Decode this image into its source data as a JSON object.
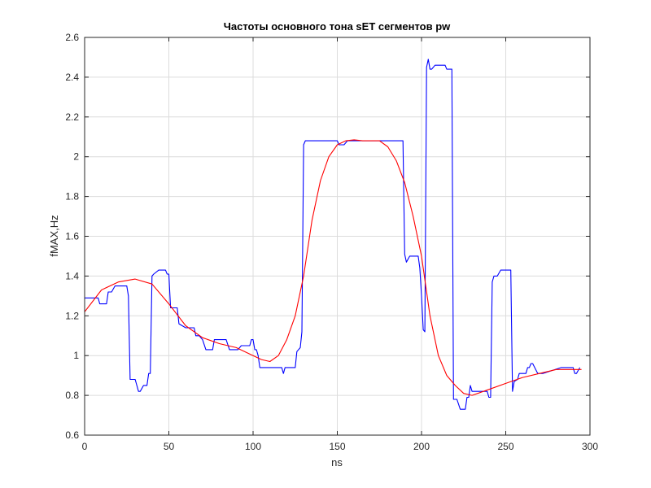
{
  "chart_data": {
    "type": "line",
    "title": "Частоты основного тона sET сегментов pw",
    "xlabel": "ns",
    "ylabel": "fMAX,Hz",
    "xlim": [
      0,
      300
    ],
    "ylim": [
      0.6,
      2.6
    ],
    "xticks": [
      0,
      50,
      100,
      150,
      200,
      250,
      300
    ],
    "yticks": [
      0.6,
      0.8,
      1,
      1.2,
      1.4,
      1.6,
      1.8,
      2,
      2.2,
      2.4,
      2.6
    ],
    "xtick_labels": [
      "0",
      "50",
      "100",
      "150",
      "200",
      "250",
      "300"
    ],
    "ytick_labels": [
      "0.6",
      "0.8",
      "1",
      "1.2",
      "1.4",
      "1.6",
      "1.8",
      "2",
      "2.2",
      "2.4",
      "2.6"
    ],
    "grid": true,
    "series": [
      {
        "color": "#0000ff",
        "x": [
          0,
          8,
          9,
          13,
          14,
          16,
          18,
          25,
          26,
          27,
          28,
          30,
          32,
          33,
          35,
          37,
          38,
          39,
          40,
          41,
          44,
          48,
          49,
          50,
          51,
          55,
          56,
          60,
          65,
          66,
          68,
          70,
          72,
          76,
          77,
          81,
          84,
          86,
          89,
          91,
          93,
          96,
          98,
          99,
          100,
          101,
          102,
          103,
          104,
          105,
          110,
          117,
          118,
          119,
          125,
          126,
          128,
          129,
          130,
          131,
          132,
          150,
          151,
          154,
          156,
          157,
          158,
          159,
          170,
          189,
          190,
          191,
          193,
          198,
          199,
          200,
          201,
          202,
          203,
          204,
          205,
          206,
          208,
          209,
          210,
          214,
          215,
          216,
          218,
          219,
          221,
          223,
          225,
          226,
          227,
          228,
          229,
          230,
          234,
          236,
          239,
          240,
          241,
          242,
          243,
          245,
          247,
          252,
          253,
          254,
          255,
          257,
          258,
          262,
          263,
          264,
          265,
          266,
          269,
          272,
          283,
          290,
          291,
          292,
          294
        ],
        "y": [
          1.29,
          1.29,
          1.26,
          1.26,
          1.32,
          1.32,
          1.35,
          1.35,
          1.3,
          0.88,
          0.88,
          0.88,
          0.82,
          0.82,
          0.85,
          0.85,
          0.91,
          0.91,
          1.4,
          1.41,
          1.43,
          1.43,
          1.41,
          1.41,
          1.24,
          1.24,
          1.16,
          1.14,
          1.14,
          1.1,
          1.1,
          1.08,
          1.03,
          1.03,
          1.08,
          1.08,
          1.08,
          1.03,
          1.03,
          1.03,
          1.05,
          1.05,
          1.05,
          1.08,
          1.08,
          1.03,
          1.03,
          1.0,
          0.94,
          0.94,
          0.94,
          0.94,
          0.91,
          0.94,
          0.94,
          1.02,
          1.04,
          1.12,
          2.06,
          2.08,
          2.08,
          2.08,
          2.06,
          2.06,
          2.08,
          2.08,
          2.08,
          2.08,
          2.08,
          2.08,
          1.51,
          1.47,
          1.5,
          1.5,
          1.44,
          1.3,
          1.13,
          1.12,
          2.45,
          2.49,
          2.44,
          2.44,
          2.46,
          2.46,
          2.46,
          2.46,
          2.44,
          2.44,
          2.44,
          0.78,
          0.78,
          0.73,
          0.73,
          0.73,
          0.79,
          0.79,
          0.85,
          0.82,
          0.82,
          0.82,
          0.82,
          0.79,
          0.79,
          1.37,
          1.4,
          1.4,
          1.43,
          1.43,
          1.43,
          0.82,
          0.87,
          0.88,
          0.91,
          0.91,
          0.94,
          0.94,
          0.96,
          0.96,
          0.91,
          0.91,
          0.94,
          0.94,
          0.91,
          0.91,
          0.94
        ]
      },
      {
        "color": "#ff0000",
        "x": [
          0,
          10,
          20,
          30,
          40,
          50,
          60,
          70,
          80,
          90,
          100,
          105,
          110,
          115,
          120,
          125,
          130,
          135,
          140,
          145,
          150,
          155,
          160,
          165,
          170,
          175,
          180,
          185,
          190,
          195,
          200,
          205,
          210,
          215,
          220,
          225,
          230,
          240,
          250,
          260,
          270,
          280,
          290,
          295
        ],
        "y": [
          1.22,
          1.33,
          1.37,
          1.385,
          1.36,
          1.26,
          1.15,
          1.09,
          1.06,
          1.04,
          1.0,
          0.98,
          0.97,
          1.0,
          1.08,
          1.2,
          1.4,
          1.68,
          1.88,
          2.0,
          2.06,
          2.08,
          2.085,
          2.08,
          2.08,
          2.08,
          2.05,
          1.98,
          1.87,
          1.7,
          1.5,
          1.2,
          1.0,
          0.9,
          0.85,
          0.81,
          0.8,
          0.83,
          0.86,
          0.89,
          0.91,
          0.93,
          0.93,
          0.93
        ]
      }
    ]
  }
}
